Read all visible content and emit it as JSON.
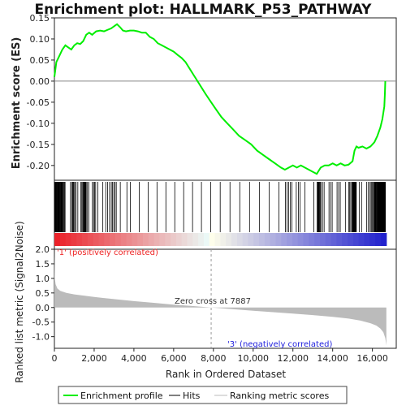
{
  "chart_data": {
    "type": "line",
    "title": "Enrichment plot: HALLMARK_P53_PATHWAY",
    "top_panel": {
      "ylabel": "Enrichment score (ES)",
      "ylim": [
        -0.235,
        0.15
      ],
      "yticks": [
        "0.15",
        "0.10",
        "0.05",
        "0.00",
        "-0.05",
        "-0.10",
        "-0.15",
        "-0.20"
      ],
      "ytick_values": [
        0.15,
        0.1,
        0.05,
        0.0,
        -0.05,
        -0.1,
        -0.15,
        -0.2
      ],
      "series": [
        {
          "name": "Enrichment profile",
          "color": "#00ee00",
          "x": [
            0,
            100,
            250,
            400,
            550,
            700,
            850,
            1000,
            1150,
            1300,
            1450,
            1600,
            1750,
            1900,
            2100,
            2300,
            2500,
            2700,
            2850,
            3000,
            3150,
            3300,
            3450,
            3600,
            3800,
            4000,
            4200,
            4400,
            4600,
            4800,
            5000,
            5200,
            5400,
            5600,
            5800,
            6000,
            6200,
            6400,
            6600,
            6800,
            7000,
            7200,
            7400,
            7600,
            7887,
            8100,
            8400,
            8700,
            9000,
            9300,
            9600,
            9900,
            10200,
            10500,
            10800,
            11100,
            11400,
            11600,
            11800,
            12000,
            12200,
            12400,
            12600,
            12800,
            13000,
            13200,
            13400,
            13600,
            13800,
            14000,
            14200,
            14400,
            14600,
            14800,
            15000,
            15100,
            15200,
            15300,
            15500,
            15700,
            15900,
            16100,
            16250,
            16400,
            16500,
            16550,
            16600,
            16630,
            16650
          ],
          "y": [
            0.01,
            0.045,
            0.06,
            0.075,
            0.085,
            0.08,
            0.075,
            0.085,
            0.09,
            0.088,
            0.095,
            0.11,
            0.115,
            0.11,
            0.118,
            0.12,
            0.118,
            0.122,
            0.125,
            0.13,
            0.135,
            0.128,
            0.12,
            0.118,
            0.12,
            0.12,
            0.118,
            0.115,
            0.115,
            0.105,
            0.1,
            0.09,
            0.085,
            0.08,
            0.075,
            0.07,
            0.062,
            0.055,
            0.045,
            0.03,
            0.015,
            0.0,
            -0.015,
            -0.03,
            -0.05,
            -0.065,
            -0.085,
            -0.1,
            -0.115,
            -0.13,
            -0.14,
            -0.15,
            -0.165,
            -0.175,
            -0.185,
            -0.195,
            -0.205,
            -0.21,
            -0.205,
            -0.2,
            -0.205,
            -0.2,
            -0.205,
            -0.21,
            -0.215,
            -0.22,
            -0.205,
            -0.2,
            -0.2,
            -0.195,
            -0.2,
            -0.195,
            -0.2,
            -0.198,
            -0.19,
            -0.165,
            -0.155,
            -0.158,
            -0.155,
            -0.16,
            -0.155,
            -0.145,
            -0.13,
            -0.11,
            -0.09,
            -0.075,
            -0.06,
            -0.03,
            0.0
          ]
        }
      ]
    },
    "hits_panel": {
      "legend_label": "Hits",
      "gene_count": 200
    },
    "bottom_panel": {
      "ylabel": "Ranked list metric (Signal2Noise)",
      "xlabel": "Rank in Ordered Dataset",
      "ylim": [
        -1.4,
        2.0
      ],
      "yticks": [
        "2.0",
        "1.5",
        "1.0",
        "0.5",
        "0.0",
        "-0.5",
        "-1.0"
      ],
      "ytick_values": [
        2.0,
        1.5,
        1.0,
        0.5,
        0.0,
        -0.5,
        -1.0
      ],
      "xlim": [
        0,
        17200
      ],
      "xticks": [
        "0",
        "2,000",
        "4,000",
        "6,000",
        "8,000",
        "10,000",
        "12,000",
        "14,000",
        "16,000"
      ],
      "xtick_values": [
        0,
        2000,
        4000,
        6000,
        8000,
        10000,
        12000,
        14000,
        16000
      ],
      "n_genes": 16700,
      "metric_profile": {
        "rank": [
          0,
          20,
          60,
          150,
          300,
          600,
          1000,
          2000,
          3000,
          4000,
          5000,
          6000,
          7000,
          7887,
          9000,
          10000,
          11000,
          12000,
          13000,
          14000,
          14800,
          15400,
          15900,
          16200,
          16400,
          16550,
          16650,
          16700
        ],
        "value": [
          1.95,
          1.0,
          0.8,
          0.65,
          0.57,
          0.5,
          0.45,
          0.36,
          0.29,
          0.22,
          0.16,
          0.1,
          0.05,
          0.0,
          -0.06,
          -0.11,
          -0.16,
          -0.21,
          -0.26,
          -0.32,
          -0.38,
          -0.45,
          -0.54,
          -0.62,
          -0.72,
          -0.85,
          -1.05,
          -1.3
        ]
      },
      "zero_cross_label": "Zero cross at 7887",
      "zero_cross": 7887,
      "pos_label": "'1' (positively correlated)",
      "neg_label": "'3' (negatively correlated)",
      "pos_color": "#ee2222",
      "neg_color": "#2222dd"
    },
    "legend": {
      "items": [
        {
          "label": "Enrichment profile",
          "color": "#00ee00"
        },
        {
          "label": "Hits",
          "color": "#000000"
        },
        {
          "label": "Ranking metric scores",
          "color": "#bbbbbb"
        }
      ],
      "placement": "bottom"
    }
  }
}
